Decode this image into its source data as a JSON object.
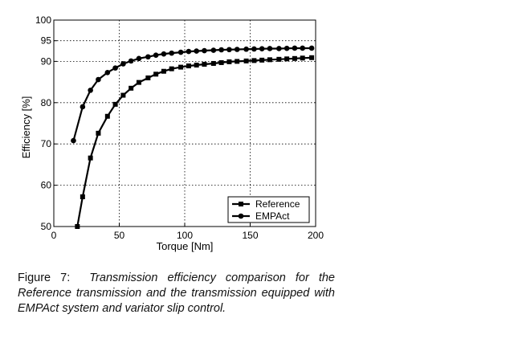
{
  "chart_data": {
    "type": "line",
    "xlabel": "Torque [Nm]",
    "ylabel": "Efficiency [%]",
    "xlim": [
      0,
      200
    ],
    "ylim": [
      50,
      100
    ],
    "xticks": [
      0,
      50,
      100,
      150,
      200
    ],
    "yticks": [
      50,
      60,
      70,
      80,
      90,
      95,
      100
    ],
    "grid": true,
    "legend_position": "bottom-right",
    "series": [
      {
        "name": "Reference",
        "marker": "square",
        "x": [
          18,
          22,
          28,
          34,
          41,
          47,
          53,
          59,
          65,
          72,
          78,
          84,
          90,
          97,
          103,
          109,
          115,
          122,
          128,
          134,
          140,
          147,
          153,
          159,
          165,
          172,
          178,
          184,
          190,
          197
        ],
        "y": [
          50,
          57.2,
          66.6,
          72.6,
          76.7,
          79.6,
          81.8,
          83.5,
          84.9,
          86,
          86.9,
          87.6,
          88.2,
          88.6,
          88.9,
          89.1,
          89.3,
          89.5,
          89.7,
          89.9,
          90,
          90.1,
          90.2,
          90.3,
          90.4,
          90.5,
          90.6,
          90.7,
          90.8,
          90.9
        ]
      },
      {
        "name": "EMPAct",
        "marker": "circle",
        "x": [
          15,
          22,
          28,
          34,
          41,
          47,
          53,
          59,
          65,
          72,
          78,
          84,
          90,
          97,
          103,
          109,
          115,
          122,
          128,
          134,
          140,
          147,
          153,
          159,
          165,
          172,
          178,
          184,
          190,
          197
        ],
        "y": [
          70.8,
          79,
          83,
          85.6,
          87.3,
          88.4,
          89.4,
          90.1,
          90.7,
          91.1,
          91.5,
          91.8,
          92,
          92.2,
          92.4,
          92.5,
          92.6,
          92.7,
          92.8,
          92.85,
          92.9,
          92.95,
          93,
          93.05,
          93.1,
          93.1,
          93.15,
          93.2,
          93.2,
          93.2
        ]
      }
    ]
  },
  "caption": {
    "number": "Figure 7:",
    "text": "Transmission efficiency comparison for the Reference transmission and the transmission equipped with EMPAct system and variator slip control."
  }
}
